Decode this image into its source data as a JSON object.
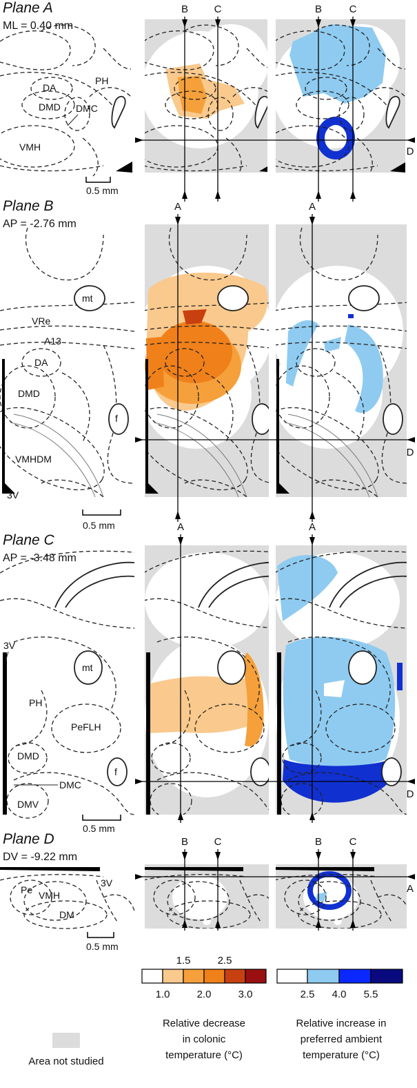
{
  "planes": [
    {
      "title": "Plane A",
      "coordinate": "ML = 0.40 mm",
      "regions": [
        "DA",
        "PH",
        "DMD",
        "DMC",
        "VMH"
      ],
      "scale_bar": "0.5 mm",
      "axis_labels": [
        "B",
        "C",
        "D"
      ]
    },
    {
      "title": "Plane B",
      "coordinate": "AP = -2.76 mm",
      "regions": [
        "mt",
        "VRe",
        "A13",
        "DA",
        "DMD",
        "f",
        "VMHDM",
        "3V"
      ],
      "scale_bar": "0.5 mm",
      "axis_labels": [
        "A",
        "D"
      ]
    },
    {
      "title": "Plane C",
      "coordinate": "AP = -3.48 mm",
      "regions": [
        "3V",
        "mt",
        "PH",
        "PeFLH",
        "DMD",
        "f",
        "DMC",
        "DMV"
      ],
      "scale_bar": "0.5 mm",
      "axis_labels": [
        "A",
        "D"
      ]
    },
    {
      "title": "Plane D",
      "coordinate": "DV = -9.22 mm",
      "regions": [
        "Pe",
        "VMH",
        "3V",
        "DM"
      ],
      "scale_bar": "0.5 mm",
      "axis_labels": [
        "B",
        "C",
        "A"
      ]
    }
  ],
  "legends": [
    {
      "ticks": [
        "1.0",
        "1.5",
        "2.0",
        "2.5",
        "3.0"
      ],
      "title": [
        "Relative decrease",
        "in colonic",
        "temperature (°C)"
      ]
    },
    {
      "ticks": [
        "2.5",
        "4.0",
        "5.5"
      ],
      "title": [
        "Relative increase in",
        "preferred ambient",
        "temperature (°C)"
      ]
    }
  ],
  "not_studied": "Area not studied"
}
